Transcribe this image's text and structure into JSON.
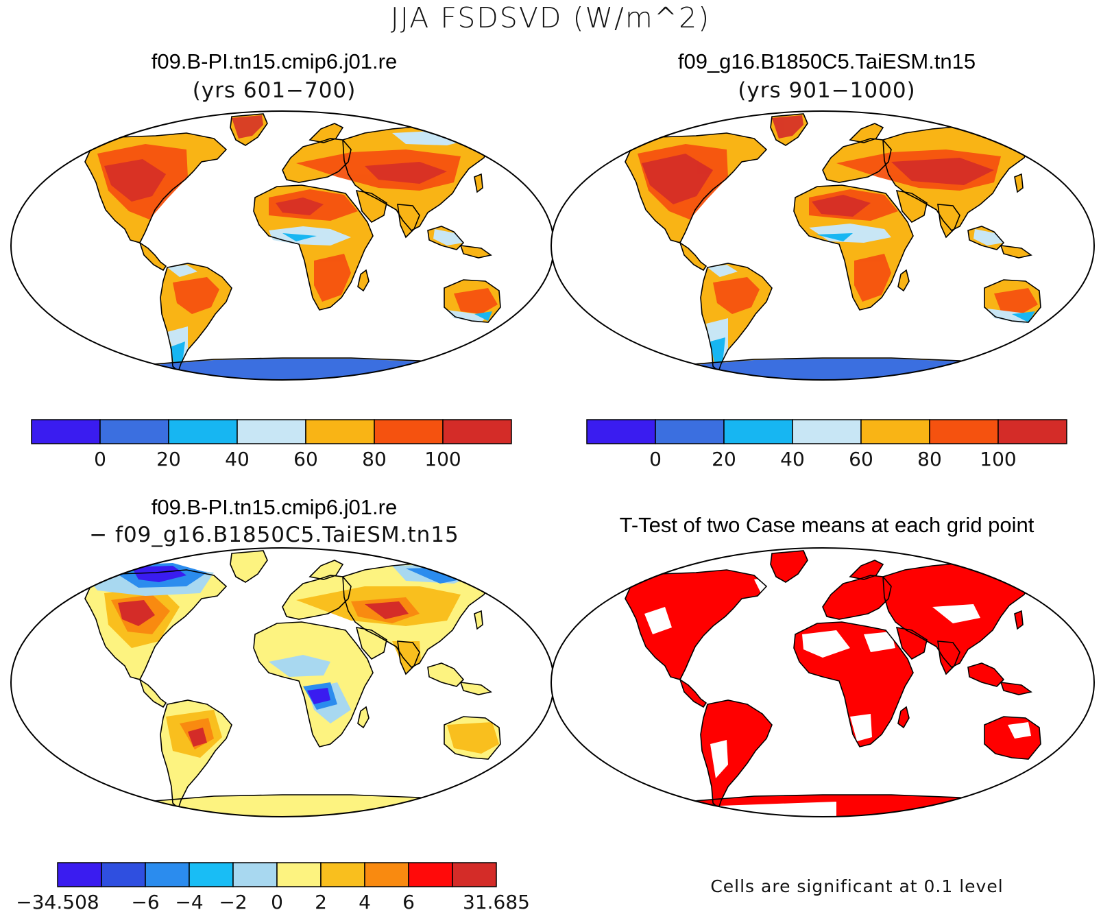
{
  "figure": {
    "title": "JJA FSDSVD (W/m^2)"
  },
  "panels": {
    "case1": {
      "title": "f09.B-PI.tn15.cmip6.j01.re",
      "subtitle": "(yrs 601−700)"
    },
    "case2": {
      "title": "f09_g16.B1850C5.TaiESM.tn15",
      "subtitle": "(yrs 901−1000)"
    },
    "diff": {
      "title": "f09.B-PI.tn15.cmip6.j01.re",
      "subtitle": "− f09_g16.B1850C5.TaiESM.tn15"
    },
    "ttest": {
      "title": "T-Test of two Case means at each grid point",
      "note": "Cells are significant at 0.1 level",
      "significant_color": "#ff0000"
    }
  },
  "colorbars": {
    "abs": {
      "colors": [
        "#3a1cf0",
        "#3b6fe0",
        "#17b6f2",
        "#c8e6f5",
        "#f9b415",
        "#f5520f",
        "#d42c28"
      ],
      "labels": [
        "0",
        "20",
        "40",
        "60",
        "80",
        "100"
      ]
    },
    "diff": {
      "colors": [
        "#3a1cf0",
        "#2f4fe0",
        "#2b8cee",
        "#19bdf5",
        "#a8d8f0",
        "#fdf380",
        "#f9bf1e",
        "#f98a10",
        "#ff0a0a",
        "#d42c28"
      ],
      "labels": [
        "−34.508",
        "−6",
        "−4",
        "−2",
        "0",
        "2",
        "4",
        "6",
        "31.685"
      ]
    }
  },
  "map_colors": {
    "ocean": "#ffffff",
    "coast": "#000000",
    "antarctica_abs": "#3b6fe0",
    "antarctica_diff": "#fdf380"
  }
}
